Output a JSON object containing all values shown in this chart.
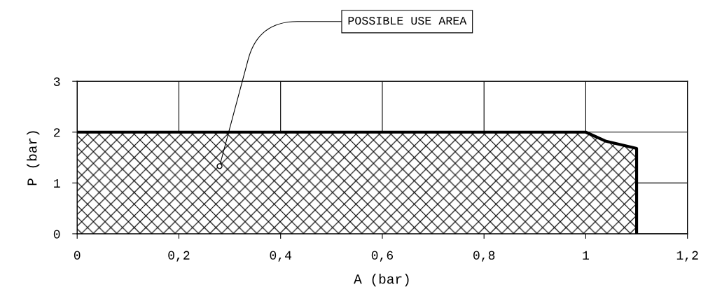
{
  "chart_data": {
    "type": "area",
    "xlabel": "A (bar)",
    "ylabel": "P (bar)",
    "x": [
      0,
      1.0,
      1.04,
      1.1,
      1.1
    ],
    "series": [
      {
        "color": "#000000",
        "values": [
          2.0,
          2.0,
          1.82,
          1.68,
          0
        ]
      }
    ],
    "xlim": [
      0,
      1.2
    ],
    "ylim": [
      0,
      3
    ],
    "xticks": [
      0,
      {
        "value": 0.2,
        "label": "0,2"
      },
      {
        "value": 0.4,
        "label": "0,4"
      },
      {
        "value": 0.6,
        "label": "0,6"
      },
      {
        "value": 0.8,
        "label": "0,8"
      },
      1,
      {
        "value": 1.2,
        "label": "1,2"
      }
    ],
    "yticks": [
      0,
      1,
      2,
      3
    ],
    "grid": true,
    "annotations": [
      {
        "text": "POSSIBLE USE AREA",
        "x": 0.28,
        "y": 1.33
      }
    ]
  }
}
